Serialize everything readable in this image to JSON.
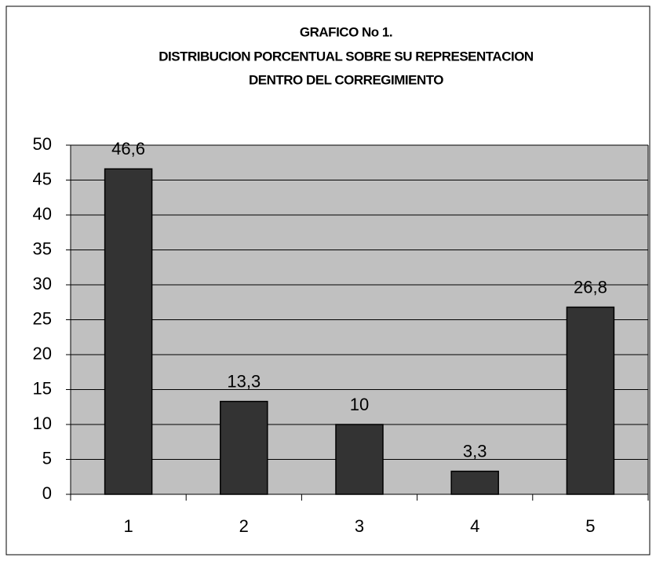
{
  "chart_data": {
    "type": "bar",
    "title": [
      "GRAFICO No 1.",
      "DISTRIBUCION PORCENTUAL SOBRE SU REPRESENTACION",
      "DENTRO DEL CORREGIMIENTO"
    ],
    "categories": [
      "1",
      "2",
      "3",
      "4",
      "5"
    ],
    "values": [
      46.6,
      13.3,
      10,
      3.3,
      26.8
    ],
    "value_labels": [
      "46,6",
      "13,3",
      "10",
      "3,3",
      "26,8"
    ],
    "color": "#333333",
    "ylim": [
      0,
      50
    ],
    "yticks": [
      0,
      5,
      10,
      15,
      20,
      25,
      30,
      35,
      40,
      45,
      50
    ],
    "grid": true
  }
}
